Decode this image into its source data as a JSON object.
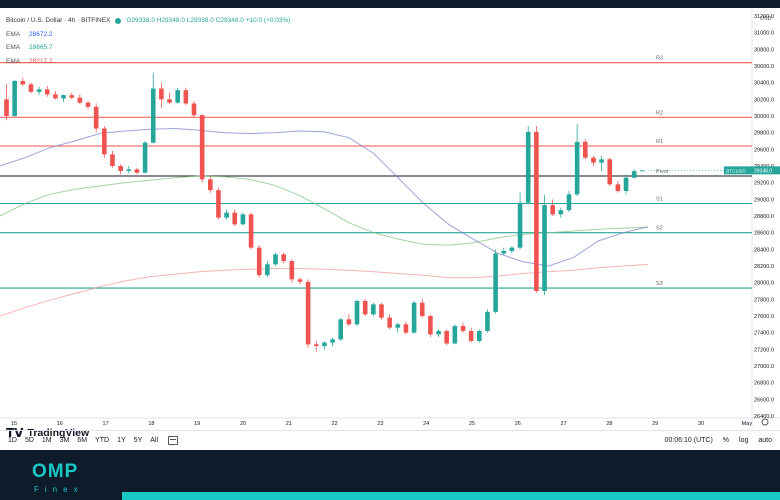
{
  "header": {
    "symbol_title": "Bitcoin / U.S. Dollar · 4h · BITFINEX",
    "ohlc": "O29338.0 H29348.0 L29338.0 C29348.0 +10.0 (+0.03%)",
    "emas": [
      {
        "name": "EMA",
        "value": "28672.2",
        "color": "#2962ff"
      },
      {
        "name": "EMA",
        "value": "28665.7",
        "color": "#26a69a"
      },
      {
        "name": "EMA",
        "value": "28217.7",
        "color": "#ef5350"
      }
    ]
  },
  "price_axis": {
    "currency": "USD",
    "ticks": [
      "31200.0",
      "31000.0",
      "30800.0",
      "30600.0",
      "30400.0",
      "30200.0",
      "30000.0",
      "29800.0",
      "29600.0",
      "29400.0",
      "29200.0",
      "29000.0",
      "28800.0",
      "28600.0",
      "28400.0",
      "28200.0",
      "28000.0",
      "27800.0",
      "27600.0",
      "27400.0",
      "27200.0",
      "27000.0",
      "26800.0",
      "26600.0",
      "26400.0"
    ],
    "current_label": "BTCUSD",
    "current_value": "29348.0"
  },
  "time_axis": {
    "ticks": [
      "15",
      "16",
      "17",
      "18",
      "19",
      "20",
      "21",
      "22",
      "23",
      "24",
      "25",
      "26",
      "27",
      "28",
      "29",
      "30",
      "May"
    ]
  },
  "pivots": {
    "R3": {
      "label": "R3",
      "price": 30640
    },
    "R2": {
      "label": "R2",
      "price": 29985
    },
    "R1": {
      "label": "R1",
      "price": 29640
    },
    "Pivot": {
      "label": "Pivot",
      "price": 29280
    },
    "S1": {
      "label": "S1",
      "price": 28950
    },
    "S2": {
      "label": "S2",
      "price": 28600
    },
    "S3": {
      "label": "S3",
      "price": 27935
    }
  },
  "chart_data": {
    "type": "candlestick",
    "ylim": [
      26400,
      31200
    ],
    "x_start_day": 15,
    "candles_per_day": 6,
    "ema_fast": [
      29400,
      29500,
      29620,
      29700,
      29790,
      29820,
      29840,
      29850,
      29830,
      29800,
      29790,
      29800,
      29820,
      29810,
      29740,
      29550,
      29250,
      28950,
      28700,
      28520,
      28350,
      28250,
      28200,
      28300,
      28500,
      28600,
      28672
    ],
    "ema_mid": [
      28800,
      28950,
      29060,
      29120,
      29160,
      29200,
      29230,
      29260,
      29280,
      29270,
      29240,
      29170,
      29050,
      28890,
      28720,
      28600,
      28520,
      28460,
      28450,
      28480,
      28540,
      28580,
      28600,
      28620,
      28640,
      28655,
      28666
    ],
    "ema_slow": [
      27600,
      27700,
      27790,
      27870,
      27950,
      28020,
      28070,
      28100,
      28130,
      28150,
      28160,
      28170,
      28170,
      28160,
      28150,
      28130,
      28110,
      28090,
      28060,
      28060,
      28080,
      28110,
      28130,
      28150,
      28180,
      28200,
      28218
    ],
    "candles": [
      [
        30200,
        30380,
        29950,
        30000
      ],
      [
        30000,
        30430,
        29990,
        30420
      ],
      [
        30420,
        30460,
        30360,
        30380
      ],
      [
        30380,
        30400,
        30270,
        30290
      ],
      [
        30290,
        30350,
        30250,
        30320
      ],
      [
        30320,
        30360,
        30230,
        30260
      ],
      [
        30260,
        30300,
        30200,
        30210
      ],
      [
        30210,
        30260,
        30170,
        30250
      ],
      [
        30250,
        30280,
        30200,
        30220
      ],
      [
        30220,
        30260,
        30140,
        30160
      ],
      [
        30160,
        30180,
        30080,
        30110
      ],
      [
        30110,
        30150,
        29800,
        29850
      ],
      [
        29850,
        29880,
        29500,
        29540
      ],
      [
        29540,
        29580,
        29380,
        29400
      ],
      [
        29400,
        29420,
        29300,
        29340
      ],
      [
        29340,
        29400,
        29310,
        29360
      ],
      [
        29360,
        29380,
        29300,
        29320
      ],
      [
        29320,
        29700,
        29310,
        29680
      ],
      [
        29680,
        30520,
        29670,
        30330
      ],
      [
        30330,
        30400,
        30100,
        30200
      ],
      [
        30200,
        30280,
        30140,
        30160
      ],
      [
        30160,
        30340,
        30150,
        30310
      ],
      [
        30310,
        30340,
        30130,
        30150
      ],
      [
        30150,
        30180,
        29980,
        30010
      ],
      [
        30010,
        30020,
        29200,
        29240
      ],
      [
        29240,
        29280,
        29080,
        29110
      ],
      [
        29110,
        29140,
        28760,
        28780
      ],
      [
        28780,
        28880,
        28760,
        28840
      ],
      [
        28840,
        28880,
        28680,
        28700
      ],
      [
        28700,
        28840,
        28690,
        28820
      ],
      [
        28820,
        28840,
        28400,
        28420
      ],
      [
        28420,
        28450,
        28060,
        28090
      ],
      [
        28090,
        28260,
        28070,
        28220
      ],
      [
        28220,
        28360,
        28200,
        28340
      ],
      [
        28340,
        28360,
        28230,
        28260
      ],
      [
        28260,
        28280,
        28000,
        28040
      ],
      [
        28040,
        28060,
        27980,
        28010
      ],
      [
        28010,
        28040,
        27220,
        27260
      ],
      [
        27260,
        27300,
        27170,
        27240
      ],
      [
        27240,
        27300,
        27200,
        27280
      ],
      [
        27280,
        27340,
        27240,
        27320
      ],
      [
        27320,
        27580,
        27300,
        27560
      ],
      [
        27560,
        27620,
        27480,
        27500
      ],
      [
        27500,
        27800,
        27480,
        27780
      ],
      [
        27780,
        27800,
        27600,
        27620
      ],
      [
        27620,
        27760,
        27600,
        27740
      ],
      [
        27740,
        27760,
        27560,
        27580
      ],
      [
        27580,
        27620,
        27440,
        27460
      ],
      [
        27460,
        27520,
        27400,
        27500
      ],
      [
        27500,
        27530,
        27380,
        27400
      ],
      [
        27400,
        27780,
        27390,
        27760
      ],
      [
        27760,
        27800,
        27580,
        27600
      ],
      [
        27600,
        27620,
        27350,
        27380
      ],
      [
        27380,
        27440,
        27350,
        27420
      ],
      [
        27420,
        27440,
        27250,
        27270
      ],
      [
        27270,
        27500,
        27260,
        27480
      ],
      [
        27480,
        27520,
        27400,
        27420
      ],
      [
        27420,
        27460,
        27280,
        27300
      ],
      [
        27300,
        27440,
        27280,
        27420
      ],
      [
        27420,
        27680,
        27400,
        27650
      ],
      [
        27650,
        28400,
        27630,
        28350
      ],
      [
        28350,
        28420,
        28330,
        28380
      ],
      [
        28380,
        28440,
        28350,
        28420
      ],
      [
        28420,
        29080,
        28400,
        28960
      ],
      [
        28960,
        29880,
        28940,
        29810
      ],
      [
        29810,
        29880,
        27880,
        27900
      ],
      [
        27900,
        29050,
        27850,
        28930
      ],
      [
        28930,
        29000,
        28800,
        28820
      ],
      [
        28820,
        28900,
        28780,
        28870
      ],
      [
        28870,
        29100,
        28850,
        29060
      ],
      [
        29060,
        29900,
        29040,
        29690
      ],
      [
        29690,
        29720,
        29480,
        29500
      ],
      [
        29500,
        29520,
        29400,
        29440
      ],
      [
        29440,
        29520,
        29340,
        29480
      ],
      [
        29480,
        29500,
        29160,
        29180
      ],
      [
        29180,
        29220,
        29080,
        29100
      ],
      [
        29100,
        29300,
        29060,
        29260
      ],
      [
        29260,
        29360,
        29250,
        29338
      ],
      [
        29338,
        29348,
        29338,
        29348
      ]
    ]
  },
  "bottom_bar": {
    "ranges": [
      "1D",
      "5D",
      "1M",
      "3M",
      "6M",
      "YTD",
      "1Y",
      "5Y",
      "All"
    ],
    "clock": "00:06:10 (UTC)",
    "percent": "%",
    "log": "log",
    "auto": "auto"
  },
  "watermark": {
    "brand": "TradingView"
  },
  "footer": {
    "omp": "OMP",
    "finex": "Finex"
  },
  "colors": {
    "up": "#26a69a",
    "down": "#ef5350",
    "resistance": "#ef5350",
    "support": "#26a69a",
    "pivot": "#131722"
  }
}
